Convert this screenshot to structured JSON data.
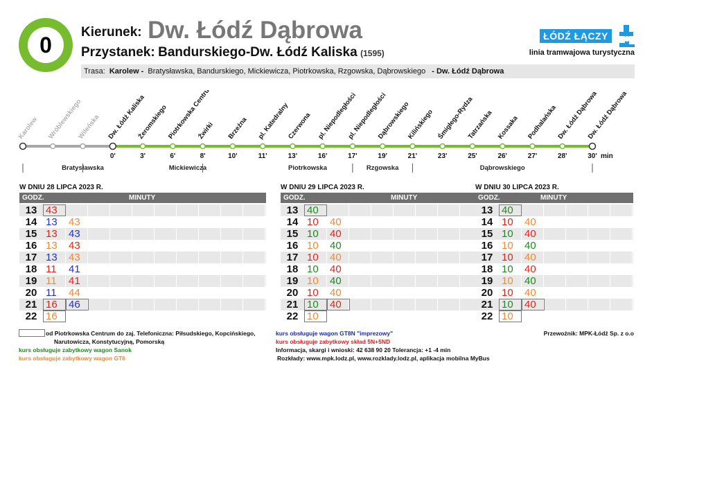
{
  "header": {
    "line_number": "0",
    "direction_label": "Kierunek:",
    "direction_value": "Dw. Łódź Dąbrowa",
    "stop_label": "Przystanek:",
    "stop_value": "Bandurskiego-Dw. Łódź Kaliska",
    "stop_code": "(1595)",
    "logo_text": "ŁÓDŹ ŁĄCZY",
    "line_type": "linia tramwajowa turystyczna"
  },
  "route": {
    "label": "Trasa:",
    "start": "Karolew -",
    "streets": [
      "Bratysławska,",
      "Bandurskiego,",
      "Mickiewicza,",
      "Piotrkowska,",
      "Rzgowska,",
      "Dąbrowskiego"
    ],
    "end": "- Dw. Łódź Dąbrowa"
  },
  "stops": [
    {
      "name": "Karolew",
      "time": "",
      "past": true
    },
    {
      "name": "Wróblewskiego",
      "time": "",
      "past": true
    },
    {
      "name": "Wileńska",
      "time": "",
      "past": true
    },
    {
      "name": "Dw. Łódź Kaliska",
      "time": "0'",
      "past": false
    },
    {
      "name": "Żeromskiego",
      "time": "3'",
      "past": false
    },
    {
      "name": "Piotrkowska Centrum",
      "time": "6'",
      "past": false
    },
    {
      "name": "Żwirki",
      "time": "8'",
      "past": false
    },
    {
      "name": "Brzeźna",
      "time": "10'",
      "past": false
    },
    {
      "name": "pl. Katedralny",
      "time": "11'",
      "past": false
    },
    {
      "name": "Czerwona",
      "time": "13'",
      "past": false
    },
    {
      "name": "pl. Niepodległości",
      "time": "16'",
      "past": false
    },
    {
      "name": "pl. Niepodległości",
      "time": "17'",
      "past": false
    },
    {
      "name": "Dąbrowskiego",
      "time": "19'",
      "past": false
    },
    {
      "name": "Kilińskiego",
      "time": "21'",
      "past": false
    },
    {
      "name": "Śmigłego-Rydza",
      "time": "23'",
      "past": false
    },
    {
      "name": "Tatrzańska",
      "time": "25'",
      "past": false
    },
    {
      "name": "Kossaka",
      "time": "26'",
      "past": false
    },
    {
      "name": "Podhalańska",
      "time": "27'",
      "past": false
    },
    {
      "name": "Dw. Łódź Dąbrowa",
      "time": "28'",
      "past": false
    },
    {
      "name": "Dw. Łódź Dąbrowa",
      "time": "30'",
      "past": false
    }
  ],
  "min_unit": "min",
  "street_segments": [
    "Bratysławska",
    "Mickiewicza",
    "Piotrkowska",
    "Rzgowska",
    "Dąbrowskiego"
  ],
  "tables": [
    {
      "title": "W DNIU 28 LIPCA 2023 R.",
      "hour_header": "GODZ.",
      "minute_header": "MINUTY",
      "rows": [
        {
          "hour": "13",
          "minutes": [
            {
              "v": "43",
              "c": "red",
              "box": true
            }
          ]
        },
        {
          "hour": "14",
          "minutes": [
            {
              "v": "13",
              "c": "blue"
            },
            {
              "v": "43",
              "c": "orange"
            }
          ]
        },
        {
          "hour": "15",
          "minutes": [
            {
              "v": "13",
              "c": "red"
            },
            {
              "v": "43",
              "c": "blue"
            }
          ]
        },
        {
          "hour": "16",
          "minutes": [
            {
              "v": "13",
              "c": "orange"
            },
            {
              "v": "43",
              "c": "red"
            }
          ]
        },
        {
          "hour": "17",
          "minutes": [
            {
              "v": "13",
              "c": "blue"
            },
            {
              "v": "43",
              "c": "orange"
            }
          ]
        },
        {
          "hour": "18",
          "minutes": [
            {
              "v": "11",
              "c": "red"
            },
            {
              "v": "41",
              "c": "blue"
            }
          ]
        },
        {
          "hour": "19",
          "minutes": [
            {
              "v": "11",
              "c": "orange"
            },
            {
              "v": "41",
              "c": "red"
            }
          ]
        },
        {
          "hour": "20",
          "minutes": [
            {
              "v": "11",
              "c": "blue"
            },
            {
              "v": "44",
              "c": "orange"
            }
          ]
        },
        {
          "hour": "21",
          "minutes": [
            {
              "v": "16",
              "c": "red",
              "box": true
            },
            {
              "v": "46",
              "c": "blue",
              "box": true
            }
          ]
        },
        {
          "hour": "22",
          "minutes": [
            {
              "v": "16",
              "c": "orange",
              "box": true
            }
          ]
        }
      ]
    },
    {
      "title": "W DNIU 29 LIPCA 2023 R.",
      "hour_header": "GODZ.",
      "minute_header": "MINUTY",
      "rows": [
        {
          "hour": "13",
          "minutes": [
            {
              "v": "40",
              "c": "green",
              "box": true
            }
          ]
        },
        {
          "hour": "14",
          "minutes": [
            {
              "v": "10",
              "c": "red"
            },
            {
              "v": "40",
              "c": "orange"
            }
          ]
        },
        {
          "hour": "15",
          "minutes": [
            {
              "v": "10",
              "c": "green"
            },
            {
              "v": "40",
              "c": "red"
            }
          ]
        },
        {
          "hour": "16",
          "minutes": [
            {
              "v": "10",
              "c": "orange"
            },
            {
              "v": "40",
              "c": "green"
            }
          ]
        },
        {
          "hour": "17",
          "minutes": [
            {
              "v": "10",
              "c": "red"
            },
            {
              "v": "40",
              "c": "orange"
            }
          ]
        },
        {
          "hour": "18",
          "minutes": [
            {
              "v": "10",
              "c": "green"
            },
            {
              "v": "40",
              "c": "red"
            }
          ]
        },
        {
          "hour": "19",
          "minutes": [
            {
              "v": "10",
              "c": "orange"
            },
            {
              "v": "40",
              "c": "green"
            }
          ]
        },
        {
          "hour": "20",
          "minutes": [
            {
              "v": "10",
              "c": "red"
            },
            {
              "v": "40",
              "c": "orange"
            }
          ]
        },
        {
          "hour": "21",
          "minutes": [
            {
              "v": "10",
              "c": "green",
              "box": true
            },
            {
              "v": "40",
              "c": "red",
              "box": true
            }
          ]
        },
        {
          "hour": "22",
          "minutes": [
            {
              "v": "10",
              "c": "orange",
              "box": true
            }
          ]
        }
      ]
    },
    {
      "title": "W DNIU 30 LIPCA 2023 R.",
      "hour_header": "GODZ.",
      "minute_header": "MINUTY",
      "rows": [
        {
          "hour": "13",
          "minutes": [
            {
              "v": "40",
              "c": "green",
              "box": true
            }
          ]
        },
        {
          "hour": "14",
          "minutes": [
            {
              "v": "10",
              "c": "red"
            },
            {
              "v": "40",
              "c": "orange"
            }
          ]
        },
        {
          "hour": "15",
          "minutes": [
            {
              "v": "10",
              "c": "green"
            },
            {
              "v": "40",
              "c": "red"
            }
          ]
        },
        {
          "hour": "16",
          "minutes": [
            {
              "v": "10",
              "c": "orange"
            },
            {
              "v": "40",
              "c": "green"
            }
          ]
        },
        {
          "hour": "17",
          "minutes": [
            {
              "v": "10",
              "c": "red"
            },
            {
              "v": "40",
              "c": "orange"
            }
          ]
        },
        {
          "hour": "18",
          "minutes": [
            {
              "v": "10",
              "c": "green"
            },
            {
              "v": "40",
              "c": "red"
            }
          ]
        },
        {
          "hour": "19",
          "minutes": [
            {
              "v": "10",
              "c": "orange"
            },
            {
              "v": "40",
              "c": "green"
            }
          ]
        },
        {
          "hour": "20",
          "minutes": [
            {
              "v": "10",
              "c": "red"
            },
            {
              "v": "40",
              "c": "orange"
            }
          ]
        },
        {
          "hour": "21",
          "minutes": [
            {
              "v": "10",
              "c": "green",
              "box": true
            },
            {
              "v": "40",
              "c": "red",
              "box": true
            }
          ]
        },
        {
          "hour": "22",
          "minutes": [
            {
              "v": "10",
              "c": "orange",
              "box": true
            }
          ]
        }
      ]
    }
  ],
  "legend": {
    "boxed_note_line1": "od Piotrkowska Centrum do zaj. Telefoniczna: Piłsudskiego, Kopcińskiego,",
    "boxed_note_line2": "Narutowicza, Konstytucyjną, Pomorską",
    "green_note": "kurs obsługuje zabytkowy wagon Sanok",
    "orange_note": "kurs obsługuje zabytkowy wagon GT6",
    "blue_note": "kurs obsługuje wagon GT8N \"imprezowy\"",
    "red_note": "kurs obsługuje zabytkowy skład 5N+5ND",
    "info": "Informacja, skargi i wnioski: 42 638 90 20 Tolerancja: +1 -4 min",
    "schedules": "Rozkłady: www.mpk.lodz.pl, www.rozklady.lodz.pl, aplikacja mobilna MyBus",
    "carrier": "Przewoźnik: MPK-Łódź Sp. z o.o"
  },
  "colors": {
    "line_green": "#77bb2e",
    "past_gray": "#a8a8a8",
    "logo_blue": "#1f9ae0",
    "header_gray": "#6f6f6f",
    "stripe": "#e8e8e8",
    "red": "#e2231a",
    "blue": "#2233bb",
    "orange": "#ee8a33",
    "green": "#1f8a1f"
  }
}
